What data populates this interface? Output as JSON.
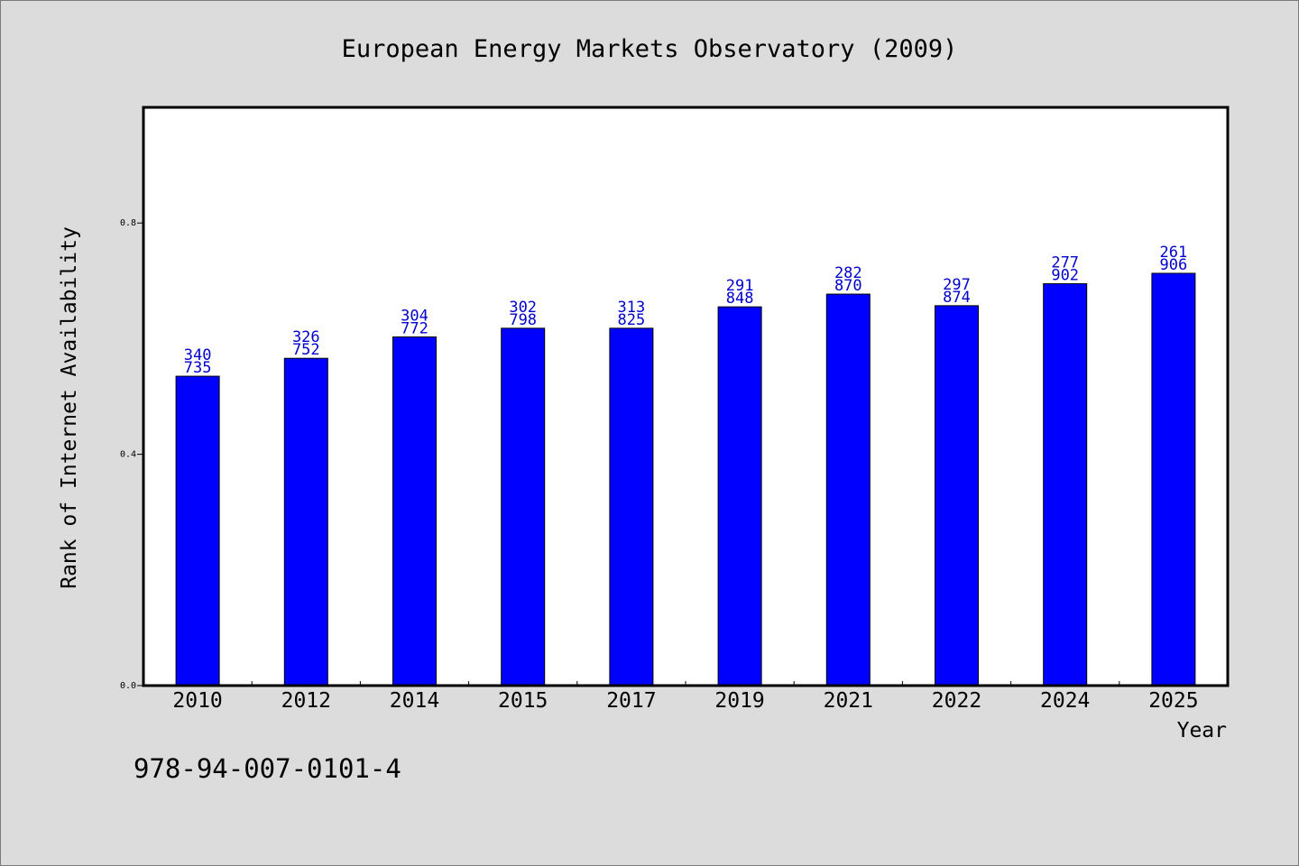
{
  "chart_data": {
    "type": "bar",
    "title": "European Energy Markets Observatory (2009)",
    "xlabel": "Year",
    "ylabel": "Rank of Internet Availability",
    "categories": [
      "2010",
      "2012",
      "2014",
      "2015",
      "2017",
      "2019",
      "2021",
      "2022",
      "2024",
      "2025"
    ],
    "values": [
      0.535,
      0.566,
      0.603,
      0.618,
      0.618,
      0.655,
      0.677,
      0.657,
      0.695,
      0.713
    ],
    "data_labels": [
      [
        "340",
        "735"
      ],
      [
        "326",
        "752"
      ],
      [
        "304",
        "772"
      ],
      [
        "302",
        "798"
      ],
      [
        "313",
        "825"
      ],
      [
        "291",
        "848"
      ],
      [
        "282",
        "870"
      ],
      [
        "297",
        "874"
      ],
      [
        "277",
        "902"
      ],
      [
        "261",
        "906"
      ]
    ],
    "ylim": [
      0.0,
      1.0
    ],
    "yticks": [
      0.0,
      0.4,
      0.8
    ],
    "ytick_labels": [
      "0.0",
      "0.4",
      "0.8"
    ],
    "bar_color": "#0000ff",
    "label_color": "#0000cc",
    "grid": false
  },
  "footer_text": "978-94-007-0101-4"
}
